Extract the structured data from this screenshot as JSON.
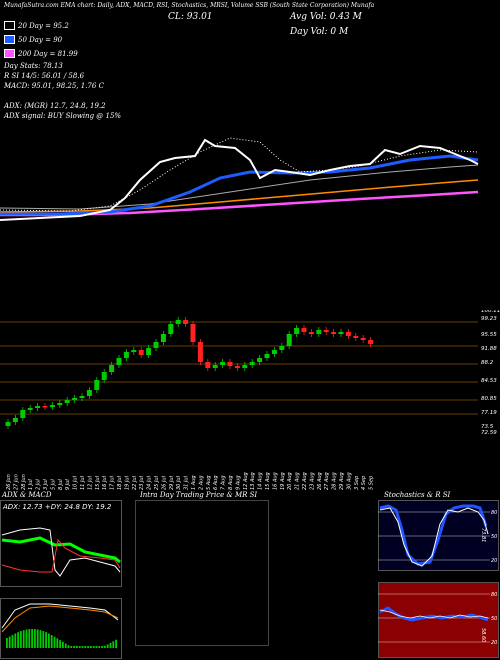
{
  "header": {
    "top_line": "MunafaSutra.com  EMA chart: Daily, ADX, MACD, RSI, Stochastics, MRSI, Volume SSB   (South State Corporation) Munafa",
    "close_label": "CL: 93.01",
    "avg_vol": "Avg Vol: 0.43 M",
    "day_vol": "Day Vol: 0  M",
    "ema20": "20  Day = 95.2",
    "ema50": "50  Day = 90",
    "ema200": "200  Day = 81.99",
    "stats": "Day Stats: 78.13",
    "rsi": "R           SI 14/5: 56.01 / 58.6",
    "macd": "MACD: 95.01, 98.25, 1.76  C",
    "adx": "ADX:                    (MGR) 12.7,  24.8,  19.2",
    "adx_signal": "ADX  signal:                          BUY Slowing @ 15%"
  },
  "colors": {
    "ema20": "#ffffff",
    "ema50": "#1e5cff",
    "ema200": "#ff55ff",
    "up": "#00cc00",
    "down": "#ff2222",
    "orange": "#ff8c00"
  },
  "price_axis": [
    "100.11",
    "99.23",
    "95.55",
    "91.88",
    "88.2",
    "84.53",
    "80.85",
    "77.19",
    "73.5",
    "72.59"
  ],
  "dates": [
    "26 Jun",
    "27 Jun",
    "28 Jun",
    "1 Jul",
    "2 Jul",
    "3 Jul",
    "5 Jul",
    "8 Jul",
    "9 Jul",
    "10 Jul",
    "11 Jul",
    "12 Jul",
    "15 Jul",
    "16 Jul",
    "17 Jul",
    "18 Jul",
    "19 Jul",
    "22 Jul",
    "23 Jul",
    "24 Jul",
    "25 Jul",
    "26 Jul",
    "29 Jul",
    "30 Jul",
    "31 Jul",
    "1 Aug",
    "2 Aug",
    "5 Aug",
    "6 Aug",
    "7 Aug",
    "8 Aug",
    "9 Aug",
    "12 Aug",
    "13 Aug",
    "14 Aug",
    "15 Aug",
    "16 Aug",
    "19 Aug",
    "20 Aug",
    "21 Aug",
    "22 Aug",
    "23 Aug",
    "26 Aug",
    "27 Aug",
    "28 Aug",
    "29 Aug",
    "30 Aug",
    "3 Sep",
    "4 Sep",
    "5 Sep"
  ],
  "panels": {
    "adx": {
      "title": "ADX  & MACD",
      "readout": "ADX: 12.73 +DY: 24.8  DY: 19.2"
    },
    "intraday": {
      "title": "Intra  Day Trading Price  & MR                SI"
    },
    "stoch": {
      "title": "Stochastics & R                 SI",
      "levels": [
        "80",
        "50",
        "20"
      ],
      "value": "73.81"
    },
    "rsi": {
      "levels": [
        "80",
        "50",
        "20"
      ],
      "value": "58.60"
    }
  }
}
